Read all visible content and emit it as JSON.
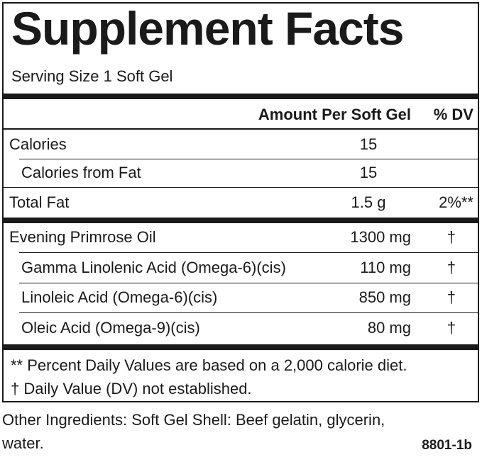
{
  "title": "Supplement Facts",
  "serving_size": "Serving Size 1 Soft Gel",
  "header": {
    "amount_label": "Amount Per Soft Gel",
    "dv_label": "% DV"
  },
  "calories": [
    {
      "name": "Calories",
      "amount": "15",
      "dv": ""
    },
    {
      "name": "Calories from Fat",
      "amount": "15",
      "dv": ""
    }
  ],
  "total_fat": {
    "name": "Total Fat",
    "amount": "1.5 g",
    "dv": "2%**"
  },
  "nutrients": [
    {
      "name": "Evening Primrose Oil",
      "amount": "1300 mg",
      "dv": "†"
    },
    {
      "name": "Gamma Linolenic Acid (Omega-6)(cis)",
      "amount": "110 mg",
      "dv": "†"
    },
    {
      "name": "Linoleic Acid (Omega-6)(cis)",
      "amount": "850 mg",
      "dv": "†"
    },
    {
      "name": "Oleic Acid (Omega-9)(cis)",
      "amount": "80 mg",
      "dv": "†"
    }
  ],
  "footnotes": [
    "** Percent Daily Values are based on a 2,000 calorie diet.",
    "† Daily Value (DV) not established."
  ],
  "other_ingredients": "Other Ingredients: Soft Gel Shell:  Beef gelatin, glycerin, water.",
  "product_code": "8801-1b"
}
